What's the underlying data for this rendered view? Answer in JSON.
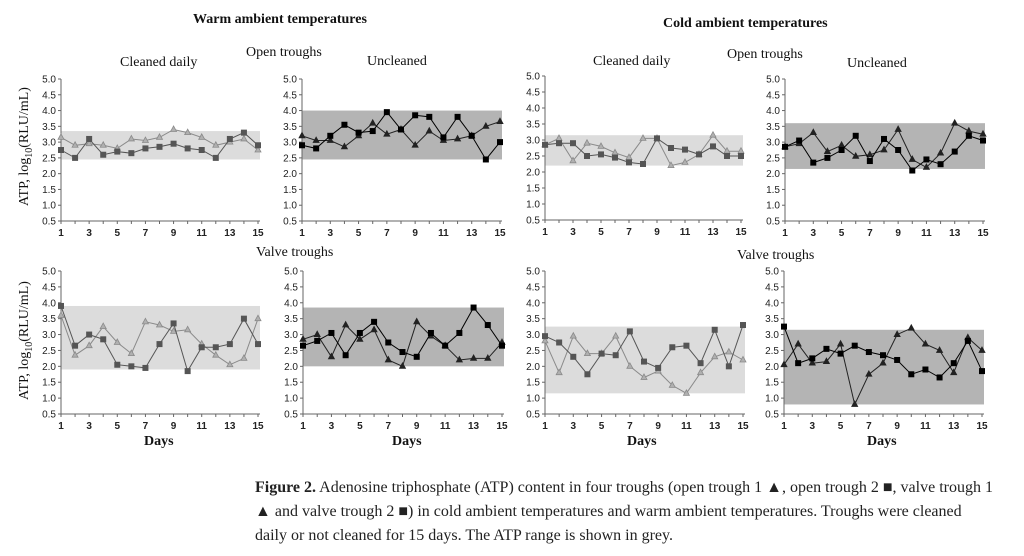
{
  "figure": {
    "group_titles": {
      "warm": "Warm ambient temperatures",
      "cold": "Cold ambient temperatures"
    },
    "row_titles": {
      "open": "Open troughs",
      "valve": "Valve troughs"
    },
    "col_titles": {
      "cleaned": "Cleaned daily",
      "uncleaned": "Uncleaned"
    },
    "ylabel_prefix": "ATP, log",
    "ylabel_sub": "10",
    "ylabel_suffix": "(RLU/mL)",
    "xlabel": "Days",
    "caption": {
      "label": "Figure 2.",
      "text": " Adenosine triphosphate (ATP) content in four troughs (open trough 1 ▲, open trough 2 ■, valve trough 1 ▲ and valve trough 2 ■) in cold ambient temperatures and warm ambient temperatures. Troughs were cleaned daily or not cleaned for 15 days. The ATP range is shown in grey."
    }
  },
  "chart_data": [
    {
      "type": "line",
      "id": "warm-open-cleaned",
      "group": "Warm ambient temperatures",
      "trough": "Open troughs",
      "title": "Cleaned daily",
      "x": [
        1,
        2,
        3,
        4,
        5,
        6,
        7,
        8,
        9,
        10,
        11,
        12,
        13,
        14,
        15
      ],
      "xticks": [
        1,
        3,
        5,
        7,
        9,
        11,
        13,
        15
      ],
      "yticks": [
        0.5,
        1.0,
        1.5,
        2.0,
        2.5,
        3.0,
        3.5,
        4.0,
        4.5,
        5.0
      ],
      "ylim": [
        0.5,
        5.0
      ],
      "ylabel": "ATP, log10(RLU/mL)",
      "xlabel": "",
      "range": [
        2.45,
        3.35
      ],
      "range_color": "#dcdcdc",
      "series": [
        {
          "name": "open trough 1",
          "marker": "triangle",
          "color": "#8a8a8a",
          "values": [
            3.15,
            2.9,
            2.95,
            2.9,
            2.8,
            3.1,
            3.05,
            3.15,
            3.4,
            3.3,
            3.15,
            2.9,
            3.0,
            3.1,
            2.75
          ]
        },
        {
          "name": "open trough 2",
          "marker": "square",
          "color": "#555555",
          "values": [
            2.75,
            2.5,
            3.1,
            2.6,
            2.7,
            2.65,
            2.8,
            2.85,
            2.95,
            2.8,
            2.75,
            2.5,
            3.1,
            3.3,
            2.9
          ]
        }
      ]
    },
    {
      "type": "line",
      "id": "warm-open-uncleaned",
      "group": "Warm ambient temperatures",
      "trough": "Open troughs",
      "title": "Uncleaned",
      "x": [
        1,
        2,
        3,
        4,
        5,
        6,
        7,
        8,
        9,
        10,
        11,
        12,
        13,
        14,
        15
      ],
      "xticks": [
        1,
        3,
        5,
        7,
        9,
        11,
        13,
        15
      ],
      "yticks": [
        0.5,
        1.0,
        1.5,
        2.0,
        2.5,
        3.0,
        3.5,
        4.0,
        4.5,
        5.0
      ],
      "ylim": [
        0.5,
        5.0
      ],
      "ylabel": "",
      "xlabel": "",
      "range": [
        2.45,
        4.0
      ],
      "range_color": "#b4b4b4",
      "series": [
        {
          "name": "open trough 1",
          "marker": "triangle",
          "color": "#222222",
          "values": [
            3.2,
            3.05,
            3.05,
            2.85,
            3.2,
            3.6,
            3.25,
            3.4,
            2.9,
            3.35,
            3.05,
            3.1,
            3.2,
            3.5,
            3.65
          ]
        },
        {
          "name": "open trough 2",
          "marker": "square",
          "color": "#000000",
          "values": [
            2.9,
            2.8,
            3.2,
            3.55,
            3.3,
            3.35,
            3.95,
            3.4,
            3.85,
            3.8,
            3.15,
            3.8,
            3.2,
            2.45,
            3.0
          ]
        }
      ]
    },
    {
      "type": "line",
      "id": "warm-valve-cleaned",
      "group": "Warm ambient temperatures",
      "trough": "Valve troughs",
      "title": "Cleaned daily",
      "x": [
        1,
        2,
        3,
        4,
        5,
        6,
        7,
        8,
        9,
        10,
        11,
        12,
        13,
        14,
        15
      ],
      "xticks": [
        1,
        3,
        5,
        7,
        9,
        11,
        13,
        15
      ],
      "yticks": [
        0.5,
        1.0,
        1.5,
        2.0,
        2.5,
        3.0,
        3.5,
        4.0,
        4.5,
        5.0
      ],
      "ylim": [
        0.5,
        5.0
      ],
      "ylabel": "ATP, log10(RLU/mL)",
      "xlabel": "Days",
      "range": [
        1.9,
        3.9
      ],
      "range_color": "#dcdcdc",
      "series": [
        {
          "name": "valve trough 1",
          "marker": "triangle",
          "color": "#8a8a8a",
          "values": [
            3.6,
            2.35,
            2.65,
            3.25,
            2.75,
            2.4,
            3.4,
            3.3,
            3.1,
            3.15,
            2.7,
            2.35,
            2.05,
            2.25,
            3.5
          ]
        },
        {
          "name": "valve trough 2",
          "marker": "square",
          "color": "#555555",
          "values": [
            3.9,
            2.65,
            3.0,
            2.85,
            2.05,
            2.0,
            1.95,
            2.7,
            3.35,
            1.85,
            2.6,
            2.6,
            2.7,
            3.5,
            2.7
          ]
        }
      ]
    },
    {
      "type": "line",
      "id": "warm-valve-uncleaned",
      "group": "Warm ambient temperatures",
      "trough": "Valve troughs",
      "title": "Uncleaned",
      "x": [
        1,
        2,
        3,
        4,
        5,
        6,
        7,
        8,
        9,
        10,
        11,
        12,
        13,
        14,
        15
      ],
      "xticks": [
        1,
        3,
        5,
        7,
        9,
        11,
        13,
        15
      ],
      "yticks": [
        0.5,
        1.0,
        1.5,
        2.0,
        2.5,
        3.0,
        3.5,
        4.0,
        4.5,
        5.0
      ],
      "ylim": [
        0.5,
        5.0
      ],
      "ylabel": "",
      "xlabel": "Days",
      "range": [
        2.0,
        3.85
      ],
      "range_color": "#b4b4b4",
      "series": [
        {
          "name": "valve trough 1",
          "marker": "triangle",
          "color": "#222222",
          "values": [
            2.85,
            3.0,
            2.3,
            3.3,
            2.85,
            3.15,
            2.2,
            2.0,
            3.4,
            2.95,
            2.65,
            2.2,
            2.25,
            2.25,
            2.75
          ]
        },
        {
          "name": "valve trough 2",
          "marker": "square",
          "color": "#000000",
          "values": [
            2.65,
            2.8,
            3.05,
            2.35,
            3.05,
            3.4,
            2.75,
            2.45,
            2.3,
            3.05,
            2.65,
            3.05,
            3.85,
            3.3,
            2.65
          ]
        }
      ]
    },
    {
      "type": "line",
      "id": "cold-open-cleaned",
      "group": "Cold ambient temperatures",
      "trough": "Open troughs",
      "title": "Cleaned daily",
      "x": [
        1,
        2,
        3,
        4,
        5,
        6,
        7,
        8,
        9,
        10,
        11,
        12,
        13,
        14,
        15
      ],
      "xticks": [
        1,
        3,
        5,
        7,
        9,
        11,
        13,
        15
      ],
      "yticks": [
        0.5,
        1.0,
        1.5,
        2.0,
        2.5,
        3.0,
        3.5,
        4.0,
        4.5,
        5.0
      ],
      "ylim": [
        0.5,
        5.0
      ],
      "ylabel": "",
      "xlabel": "",
      "range": [
        2.2,
        3.15
      ],
      "range_color": "#dcdcdc",
      "series": [
        {
          "name": "open trough 1",
          "marker": "triangle",
          "color": "#8a8a8a",
          "values": [
            2.85,
            3.05,
            2.35,
            2.9,
            2.8,
            2.6,
            2.45,
            3.05,
            3.05,
            2.2,
            2.3,
            2.55,
            3.15,
            2.65,
            2.65
          ]
        },
        {
          "name": "open trough 2",
          "marker": "square",
          "color": "#555555",
          "values": [
            2.85,
            2.9,
            2.9,
            2.5,
            2.55,
            2.45,
            2.3,
            2.25,
            3.05,
            2.75,
            2.7,
            2.55,
            2.8,
            2.5,
            2.5
          ]
        }
      ]
    },
    {
      "type": "line",
      "id": "cold-open-uncleaned",
      "group": "Cold ambient temperatures",
      "trough": "Open troughs",
      "title": "Uncleaned",
      "x": [
        1,
        2,
        3,
        4,
        5,
        6,
        7,
        8,
        9,
        10,
        11,
        12,
        13,
        14,
        15
      ],
      "xticks": [
        1,
        3,
        5,
        7,
        9,
        11,
        13,
        15
      ],
      "yticks": [
        0.5,
        1.0,
        1.5,
        2.0,
        2.5,
        3.0,
        3.5,
        4.0,
        4.5,
        5.0
      ],
      "ylim": [
        0.5,
        5.0
      ],
      "ylabel": "",
      "xlabel": "",
      "range": [
        2.15,
        3.6
      ],
      "range_color": "#b4b4b4",
      "series": [
        {
          "name": "open trough 1",
          "marker": "triangle",
          "color": "#222222",
          "values": [
            2.85,
            2.95,
            3.3,
            2.7,
            2.9,
            2.55,
            2.6,
            2.75,
            3.4,
            2.45,
            2.2,
            2.65,
            3.6,
            3.35,
            3.25
          ]
        },
        {
          "name": "open trough 2",
          "marker": "square",
          "color": "#000000",
          "values": [
            2.85,
            3.05,
            2.35,
            2.5,
            2.75,
            3.2,
            2.4,
            3.1,
            2.75,
            2.1,
            2.45,
            2.3,
            2.7,
            3.2,
            3.05
          ]
        }
      ]
    },
    {
      "type": "line",
      "id": "cold-valve-cleaned",
      "group": "Cold ambient temperatures",
      "trough": "Valve troughs",
      "title": "Cleaned daily",
      "x": [
        1,
        2,
        3,
        4,
        5,
        6,
        7,
        8,
        9,
        10,
        11,
        12,
        13,
        14,
        15
      ],
      "xticks": [
        1,
        3,
        5,
        7,
        9,
        11,
        13,
        15
      ],
      "yticks": [
        0.5,
        1.0,
        1.5,
        2.0,
        2.5,
        3.0,
        3.5,
        4.0,
        4.5,
        5.0
      ],
      "ylim": [
        0.5,
        5.0
      ],
      "ylabel": "",
      "xlabel": "Days",
      "range": [
        1.15,
        3.25
      ],
      "range_color": "#dcdcdc",
      "series": [
        {
          "name": "valve trough 1",
          "marker": "triangle",
          "color": "#8a8a8a",
          "values": [
            2.8,
            1.8,
            2.95,
            2.4,
            2.4,
            2.95,
            2.0,
            1.65,
            1.85,
            1.4,
            1.15,
            1.8,
            2.3,
            2.45,
            2.2
          ]
        },
        {
          "name": "valve trough 2",
          "marker": "square",
          "color": "#555555",
          "values": [
            2.95,
            2.75,
            2.3,
            1.75,
            2.4,
            2.35,
            3.1,
            2.15,
            1.95,
            2.6,
            2.65,
            2.1,
            3.15,
            2.0,
            3.3
          ]
        }
      ]
    },
    {
      "type": "line",
      "id": "cold-valve-uncleaned",
      "group": "Cold ambient temperatures",
      "trough": "Valve troughs",
      "title": "Uncleaned",
      "x": [
        1,
        2,
        3,
        4,
        5,
        6,
        7,
        8,
        9,
        10,
        11,
        12,
        13,
        14,
        15
      ],
      "xticks": [
        1,
        3,
        5,
        7,
        9,
        11,
        13,
        15
      ],
      "yticks": [
        0.5,
        1.0,
        1.5,
        2.0,
        2.5,
        3.0,
        3.5,
        4.0,
        4.5,
        5.0
      ],
      "ylim": [
        0.5,
        5.0
      ],
      "ylabel": "",
      "xlabel": "Days",
      "range": [
        0.8,
        3.15
      ],
      "range_color": "#b4b4b4",
      "series": [
        {
          "name": "valve trough 1",
          "marker": "triangle",
          "color": "#222222",
          "values": [
            2.05,
            2.7,
            2.1,
            2.15,
            2.7,
            0.8,
            1.75,
            2.1,
            3.0,
            3.2,
            2.7,
            2.5,
            1.8,
            2.9,
            2.5
          ]
        },
        {
          "name": "valve trough 2",
          "marker": "square",
          "color": "#000000",
          "values": [
            3.25,
            2.1,
            2.25,
            2.55,
            2.4,
            2.65,
            2.45,
            2.35,
            2.2,
            1.75,
            1.9,
            1.65,
            2.1,
            2.8,
            1.85
          ]
        }
      ]
    }
  ]
}
